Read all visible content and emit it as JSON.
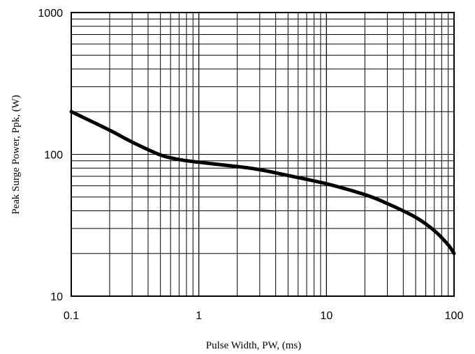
{
  "chart_data": {
    "type": "line",
    "title": "",
    "xlabel": "Pulse Width, PW, (ms)",
    "ylabel": "Peak Surge Power, Ppk, (W)",
    "x_scale": "log",
    "y_scale": "log",
    "xlim": [
      0.1,
      100
    ],
    "ylim": [
      10,
      1000
    ],
    "x_ticks": [
      "0.1",
      "1",
      "10",
      "100"
    ],
    "y_ticks": [
      "10",
      "100",
      "1000"
    ],
    "grid": true,
    "legend": "none",
    "series": [
      {
        "x": [
          0.1,
          0.2,
          0.3,
          0.5,
          0.7,
          1,
          2,
          3,
          5,
          10,
          20,
          30,
          50,
          70,
          90,
          100
        ],
        "y": [
          200,
          148,
          122,
          99,
          92,
          88,
          82,
          78,
          71,
          62,
          52,
          45,
          36,
          29,
          23,
          20
        ]
      }
    ]
  }
}
